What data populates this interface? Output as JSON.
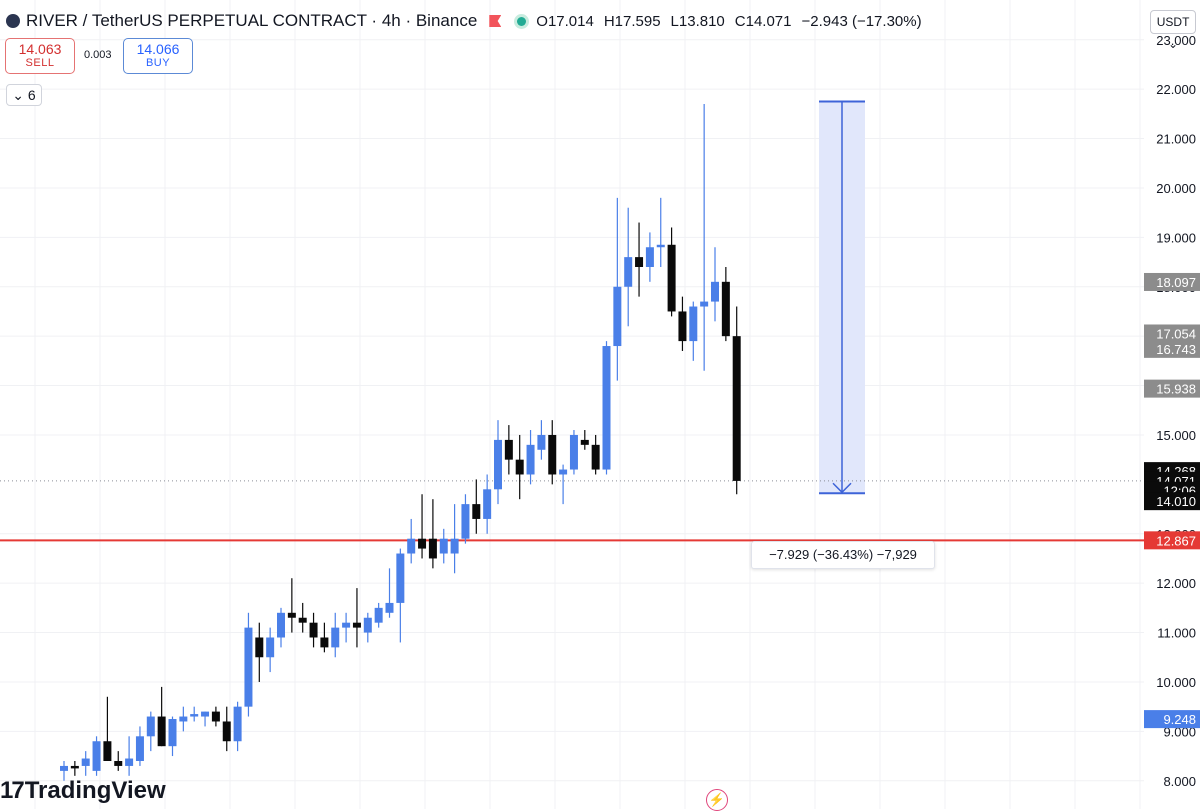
{
  "header": {
    "title": "RIVER / TetherUS PERPETUAL CONTRACT · 4h · Binance",
    "open": "O17.014",
    "high": "H17.595",
    "low": "L13.810",
    "close": "C14.071",
    "change": "−2.943 (−17.30%)"
  },
  "trade": {
    "sell_price": "14.063",
    "sell_label": "SELL",
    "spread": "0.003",
    "buy_price": "14.066",
    "buy_label": "BUY"
  },
  "indicators_toggle": "6",
  "currency": "USDT",
  "branding": "TradingView",
  "measure_label": "−7.929 (−36.43%) −7,929",
  "colors": {
    "up": "#4a7fe8",
    "down": "#0a0a0a",
    "support_line": "#e53935",
    "measure_fill": "#e1e7fb",
    "measure_stroke": "#3d63d8"
  },
  "chart_data": {
    "type": "candlestick",
    "symbol": "RIVER / TetherUS PERPETUAL CONTRACT",
    "interval": "4h",
    "exchange": "Binance",
    "ylim": [
      7.9,
      23.4
    ],
    "y_ticks": [
      "8.000",
      "9.000",
      "10.000",
      "11.000",
      "12.000",
      "13.000",
      "15.000",
      "16.000",
      "17.000",
      "18.000",
      "19.000",
      "20.000",
      "21.000",
      "22.000",
      "23.000"
    ],
    "grid": true,
    "candles": [
      {
        "o": 8.2,
        "h": 8.4,
        "l": 8.0,
        "c": 8.3
      },
      {
        "o": 8.3,
        "h": 8.4,
        "l": 8.1,
        "c": 8.25
      },
      {
        "o": 8.3,
        "h": 8.6,
        "l": 8.1,
        "c": 8.45
      },
      {
        "o": 8.2,
        "h": 8.9,
        "l": 8.1,
        "c": 8.8
      },
      {
        "o": 8.8,
        "h": 9.7,
        "l": 8.4,
        "c": 8.4
      },
      {
        "o": 8.4,
        "h": 8.6,
        "l": 8.2,
        "c": 8.3
      },
      {
        "o": 8.3,
        "h": 8.9,
        "l": 8.1,
        "c": 8.45
      },
      {
        "o": 8.4,
        "h": 9.1,
        "l": 8.3,
        "c": 8.9
      },
      {
        "o": 8.9,
        "h": 9.4,
        "l": 8.6,
        "c": 9.3
      },
      {
        "o": 9.3,
        "h": 9.9,
        "l": 8.7,
        "c": 8.7
      },
      {
        "o": 8.7,
        "h": 9.3,
        "l": 8.5,
        "c": 9.25
      },
      {
        "o": 9.2,
        "h": 9.5,
        "l": 9.0,
        "c": 9.3
      },
      {
        "o": 9.3,
        "h": 9.5,
        "l": 9.2,
        "c": 9.35
      },
      {
        "o": 9.3,
        "h": 9.4,
        "l": 9.1,
        "c": 9.4
      },
      {
        "o": 9.4,
        "h": 9.5,
        "l": 9.1,
        "c": 9.2
      },
      {
        "o": 9.2,
        "h": 9.5,
        "l": 8.6,
        "c": 8.8
      },
      {
        "o": 8.8,
        "h": 9.6,
        "l": 8.6,
        "c": 9.5
      },
      {
        "o": 9.5,
        "h": 11.4,
        "l": 9.3,
        "c": 11.1
      },
      {
        "o": 10.9,
        "h": 11.2,
        "l": 10.0,
        "c": 10.5
      },
      {
        "o": 10.5,
        "h": 11.1,
        "l": 10.2,
        "c": 10.9
      },
      {
        "o": 10.9,
        "h": 11.5,
        "l": 10.7,
        "c": 11.4
      },
      {
        "o": 11.4,
        "h": 12.1,
        "l": 11.0,
        "c": 11.3
      },
      {
        "o": 11.3,
        "h": 11.6,
        "l": 11.0,
        "c": 11.2
      },
      {
        "o": 11.2,
        "h": 11.4,
        "l": 10.7,
        "c": 10.9
      },
      {
        "o": 10.9,
        "h": 11.2,
        "l": 10.6,
        "c": 10.7
      },
      {
        "o": 10.7,
        "h": 11.4,
        "l": 10.5,
        "c": 11.1
      },
      {
        "o": 11.1,
        "h": 11.4,
        "l": 10.8,
        "c": 11.2
      },
      {
        "o": 11.2,
        "h": 11.9,
        "l": 10.7,
        "c": 11.1
      },
      {
        "o": 11.0,
        "h": 11.4,
        "l": 10.8,
        "c": 11.3
      },
      {
        "o": 11.2,
        "h": 11.6,
        "l": 11.1,
        "c": 11.5
      },
      {
        "o": 11.4,
        "h": 12.3,
        "l": 11.3,
        "c": 11.6
      },
      {
        "o": 11.6,
        "h": 12.7,
        "l": 10.8,
        "c": 12.6
      },
      {
        "o": 12.6,
        "h": 13.3,
        "l": 12.4,
        "c": 12.9
      },
      {
        "o": 12.9,
        "h": 13.8,
        "l": 12.5,
        "c": 12.7
      },
      {
        "o": 12.9,
        "h": 13.7,
        "l": 12.3,
        "c": 12.5
      },
      {
        "o": 12.6,
        "h": 13.1,
        "l": 12.4,
        "c": 12.9
      },
      {
        "o": 12.6,
        "h": 13.6,
        "l": 12.2,
        "c": 12.9
      },
      {
        "o": 12.9,
        "h": 13.8,
        "l": 12.8,
        "c": 13.6
      },
      {
        "o": 13.6,
        "h": 14.1,
        "l": 13.0,
        "c": 13.3
      },
      {
        "o": 13.3,
        "h": 14.2,
        "l": 13.0,
        "c": 13.9
      },
      {
        "o": 13.9,
        "h": 15.3,
        "l": 13.6,
        "c": 14.9
      },
      {
        "o": 14.9,
        "h": 15.2,
        "l": 14.2,
        "c": 14.5
      },
      {
        "o": 14.5,
        "h": 15.0,
        "l": 13.7,
        "c": 14.2
      },
      {
        "o": 14.2,
        "h": 15.1,
        "l": 14.0,
        "c": 14.8
      },
      {
        "o": 14.7,
        "h": 15.3,
        "l": 14.5,
        "c": 15.0
      },
      {
        "o": 15.0,
        "h": 15.3,
        "l": 14.0,
        "c": 14.2
      },
      {
        "o": 14.2,
        "h": 14.4,
        "l": 13.6,
        "c": 14.3
      },
      {
        "o": 14.3,
        "h": 15.1,
        "l": 14.2,
        "c": 15.0
      },
      {
        "o": 14.9,
        "h": 15.1,
        "l": 14.7,
        "c": 14.8
      },
      {
        "o": 14.8,
        "h": 15.0,
        "l": 14.2,
        "c": 14.3
      },
      {
        "o": 14.3,
        "h": 16.9,
        "l": 14.2,
        "c": 16.8
      },
      {
        "o": 16.8,
        "h": 19.8,
        "l": 16.1,
        "c": 18.0
      },
      {
        "o": 18.0,
        "h": 19.6,
        "l": 17.2,
        "c": 18.6
      },
      {
        "o": 18.6,
        "h": 19.3,
        "l": 17.8,
        "c": 18.4
      },
      {
        "o": 18.4,
        "h": 19.1,
        "l": 18.1,
        "c": 18.8
      },
      {
        "o": 18.8,
        "h": 19.8,
        "l": 18.4,
        "c": 18.85
      },
      {
        "o": 18.85,
        "h": 19.2,
        "l": 17.4,
        "c": 17.5
      },
      {
        "o": 17.5,
        "h": 17.8,
        "l": 16.7,
        "c": 16.9
      },
      {
        "o": 16.9,
        "h": 17.7,
        "l": 16.5,
        "c": 17.6
      },
      {
        "o": 17.6,
        "h": 21.7,
        "l": 16.3,
        "c": 17.7
      },
      {
        "o": 17.7,
        "h": 18.8,
        "l": 17.3,
        "c": 18.1
      },
      {
        "o": 18.1,
        "h": 18.4,
        "l": 16.9,
        "c": 17.0
      },
      {
        "o": 17.0,
        "h": 17.6,
        "l": 13.8,
        "c": 14.07
      }
    ],
    "price_tags": [
      {
        "label": "18.097",
        "value": 18.097,
        "bg": "#8c8c8c",
        "fg": "#ffffff"
      },
      {
        "label": "17.054",
        "value": 17.054,
        "bg": "#8c8c8c",
        "fg": "#ffffff"
      },
      {
        "label": "16.743",
        "value": 16.743,
        "bg": "#8c8c8c",
        "fg": "#ffffff"
      },
      {
        "label": "15.938",
        "value": 15.938,
        "bg": "#8c8c8c",
        "fg": "#ffffff"
      },
      {
        "label": "14.268",
        "value": 14.268,
        "bg": "#0b0b0b",
        "fg": "#ffffff"
      },
      {
        "label": "14.071",
        "value": 14.071,
        "bg": "#0b0b0b",
        "fg": "#ffffff"
      },
      {
        "label": "12:06",
        "value": 13.871,
        "bg": "#0b0b0b",
        "fg": "#ffffff"
      },
      {
        "label": "14.010",
        "value": 13.66,
        "bg": "#0b0b0b",
        "fg": "#ffffff"
      },
      {
        "label": "12.867",
        "value": 12.867,
        "bg": "#e53935",
        "fg": "#ffffff"
      },
      {
        "label": "9.248",
        "value": 9.248,
        "bg": "#4a7fe8",
        "fg": "#ffffff"
      }
    ],
    "current_price": 14.071,
    "support_level": 12.867,
    "measure": {
      "from": 21.75,
      "to": 13.82,
      "change": "−7.929",
      "percent": "−36.43%"
    }
  }
}
